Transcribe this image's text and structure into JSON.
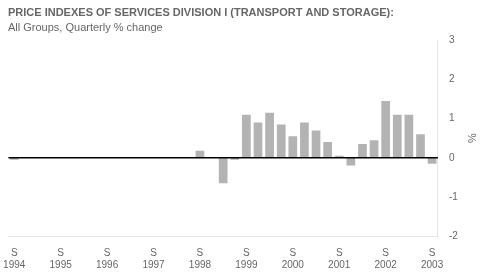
{
  "chart_data": {
    "type": "bar",
    "title": "PRICE INDEXES OF SERVICES DIVISION I (TRANSPORT AND STORAGE):",
    "subtitle": "All Groups, Quarterly % change",
    "ylabel": "%",
    "categories": [
      "S\n1994",
      null,
      null,
      null,
      "S\n1995",
      null,
      null,
      null,
      "S\n1996",
      null,
      null,
      null,
      "S\n1997",
      null,
      null,
      null,
      "S\n1998",
      null,
      null,
      null,
      "S\n1999",
      null,
      null,
      null,
      "S\n2000",
      null,
      null,
      null,
      "S\n2001",
      null,
      null,
      null,
      "S\n2002",
      null,
      null,
      null,
      "S\n2003"
    ],
    "values": [
      -0.05,
      0.0,
      0.0,
      0.0,
      0.0,
      0.0,
      0.0,
      0.0,
      0.0,
      0.0,
      0.0,
      0.0,
      0.0,
      0.0,
      0.0,
      0.0,
      0.18,
      0.0,
      -0.65,
      -0.05,
      1.1,
      0.9,
      1.15,
      0.85,
      0.55,
      0.9,
      0.7,
      0.4,
      0.05,
      -0.2,
      0.35,
      0.45,
      1.45,
      1.1,
      1.1,
      0.6,
      -0.15
    ],
    "color": "#b3b3b3",
    "ylim": [
      -2,
      3
    ],
    "yticks": [
      -2,
      -1,
      0,
      1,
      2,
      3
    ],
    "grid": false
  }
}
